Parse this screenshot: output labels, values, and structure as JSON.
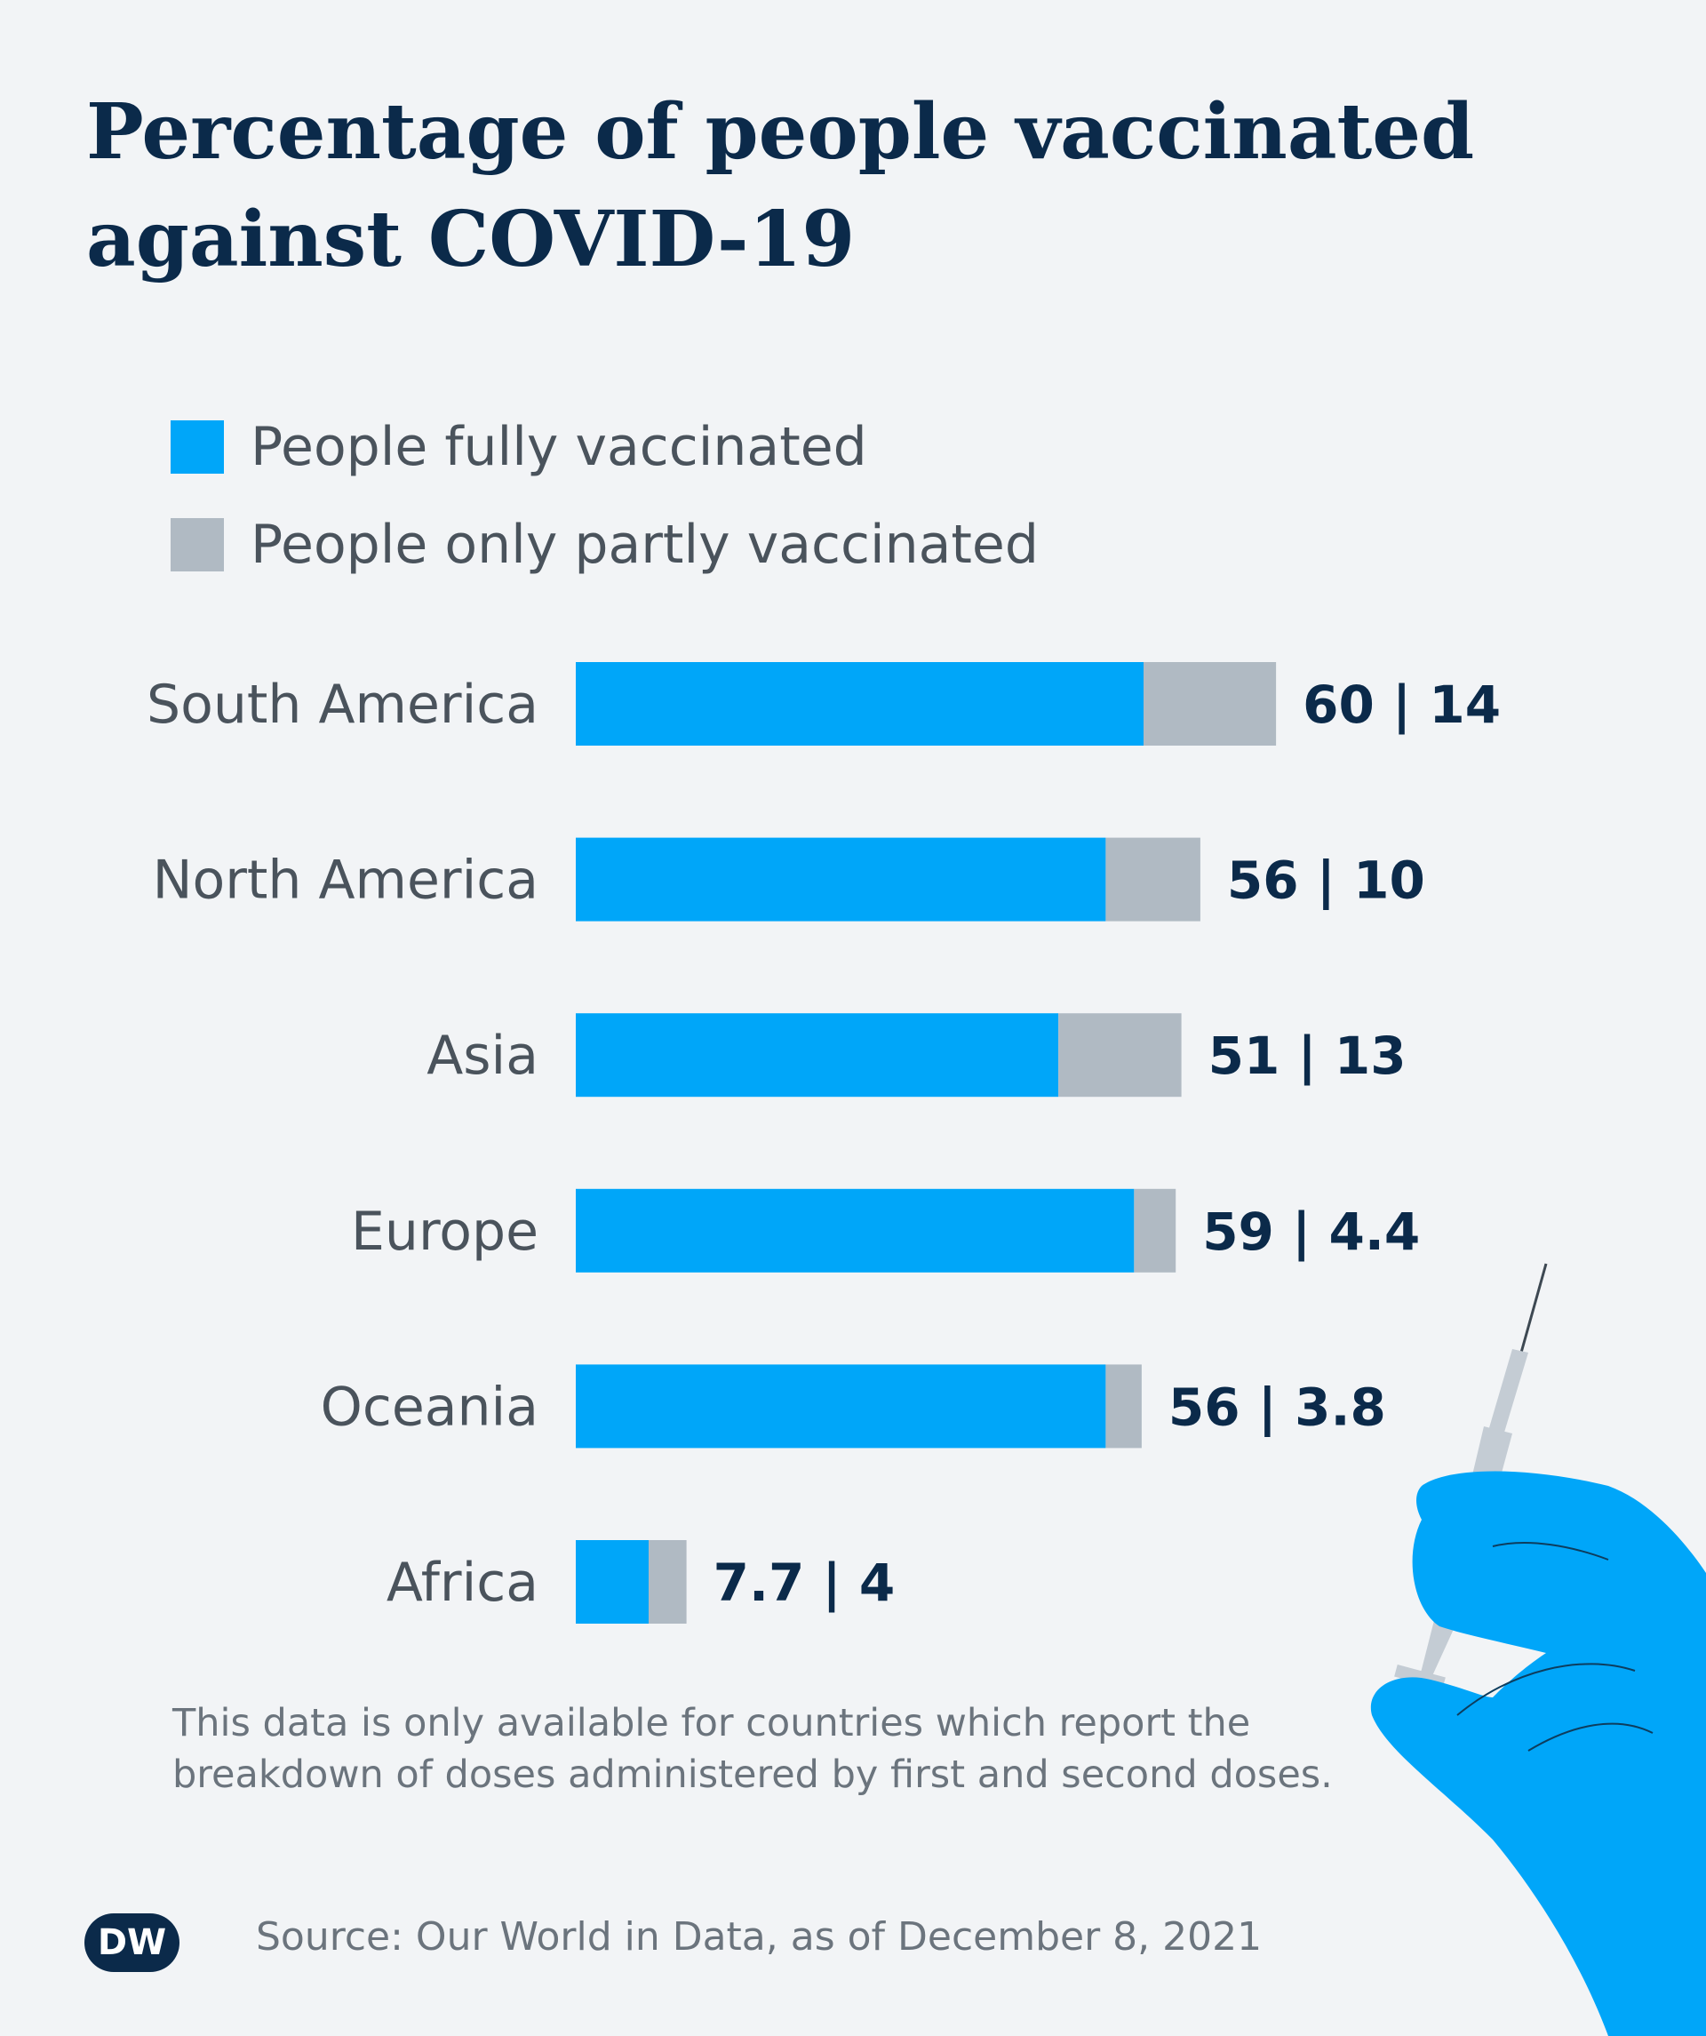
{
  "title": "Percentage of people vaccinated against COVID-19",
  "colors": {
    "fully": "#00a6f9",
    "partly": "#b0bac3",
    "title": "#0b2a4a",
    "text": "#4a535c"
  },
  "chart_data": {
    "type": "bar",
    "orientation": "horizontal",
    "stacked": true,
    "title": "Percentage of people vaccinated against COVID-19",
    "categories": [
      "South America",
      "North America",
      "Asia",
      "Europe",
      "Oceania",
      "Africa"
    ],
    "series": [
      {
        "name": "People fully vaccinated",
        "values": [
          60,
          56,
          51,
          59,
          56,
          7.7
        ]
      },
      {
        "name": "People only partly vaccinated",
        "values": [
          14,
          10,
          13,
          4.4,
          3.8,
          4
        ]
      }
    ],
    "value_labels": [
      "60 | 14",
      "56 | 10",
      "51 | 13",
      "59 | 4.4",
      "56 | 3.8",
      "7.7 | 4"
    ],
    "xlim": [
      0,
      100
    ],
    "grid": false,
    "legend": "top-left"
  },
  "legend": [
    {
      "label": "People fully vaccinated",
      "color": "#00a6f9"
    },
    {
      "label": "People only partly vaccinated",
      "color": "#b0bac3"
    }
  ],
  "note": "This data is only available for countries which report the breakdown of doses administered by first and second doses.",
  "source": "Source: Our World in Data, as of December 8, 2021",
  "logo": "DW"
}
